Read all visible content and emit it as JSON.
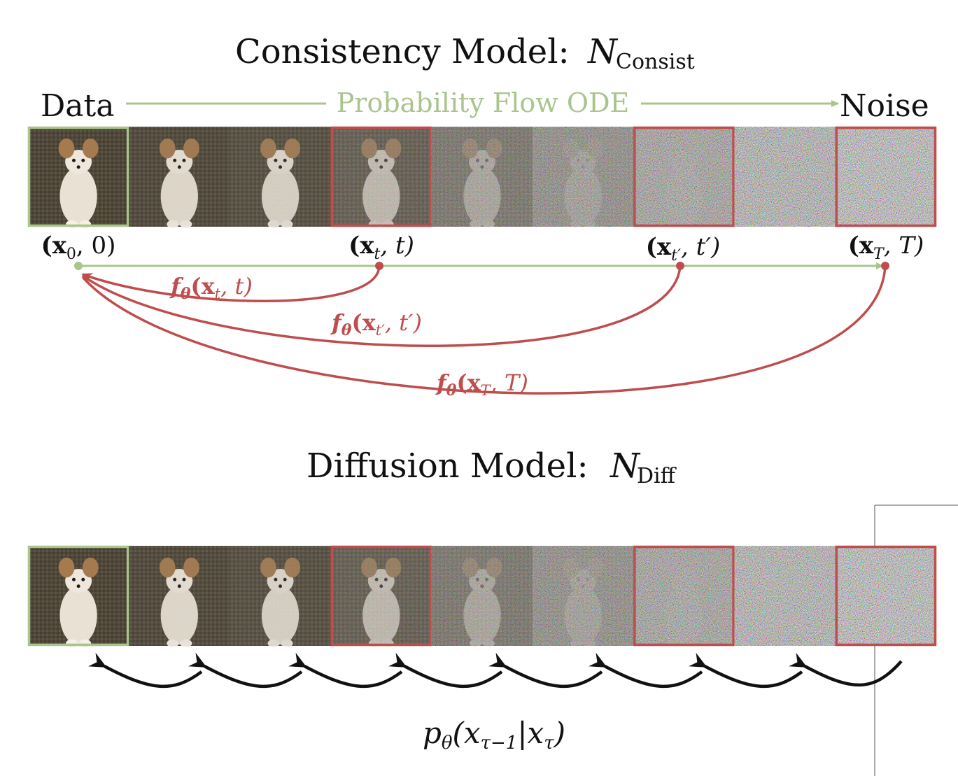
{
  "consistency": {
    "title": "Consistency Model:",
    "title_var": "N",
    "title_sub": "Consist",
    "data_label": "Data",
    "noise_label": "Noise",
    "flow_label": "Probability Flow ODE",
    "points": [
      {
        "pre": "(x",
        "sub": "0",
        "post": ", 0)"
      },
      {
        "pre": "(x",
        "sub": "t",
        "post": ", t)"
      },
      {
        "pre": "(x",
        "sub": "t′",
        "post": ", t′)"
      },
      {
        "pre": "(x",
        "sub": "T",
        "post": ", T)"
      }
    ],
    "maps": [
      {
        "pre": "f",
        "theta": "θ",
        "arg": "(x",
        "sub": "t",
        "post": ", t)"
      },
      {
        "pre": "f",
        "theta": "θ",
        "arg": "(x",
        "sub": "t′",
        "post": ", t′)"
      },
      {
        "pre": "f",
        "theta": "θ",
        "arg": "(x",
        "sub": "T",
        "post": ", T)"
      }
    ],
    "frame_noise_levels": [
      0,
      0.05,
      0.1,
      0.25,
      0.45,
      0.65,
      0.8,
      0.9,
      1.0
    ],
    "highlighted_frames": {
      "green": [
        0
      ],
      "red": [
        3,
        6,
        8
      ]
    }
  },
  "diffusion": {
    "title": "Diffusion Model:",
    "title_var": "N",
    "title_sub": "Diff",
    "frame_noise_levels": [
      0,
      0.05,
      0.1,
      0.25,
      0.45,
      0.65,
      0.8,
      0.9,
      1.0
    ],
    "highlighted_frames": {
      "green": [
        0
      ],
      "red": [
        3,
        6,
        8
      ]
    },
    "step_label": {
      "p": "p",
      "theta": "θ",
      "open": "(x",
      "sub1": "τ−1",
      "bar": "|x",
      "sub2": "τ",
      "close": ")"
    }
  },
  "colors": {
    "green": "#a9c48c",
    "red": "#bf4d4d",
    "black": "#111111",
    "floor": "#4f4739"
  }
}
